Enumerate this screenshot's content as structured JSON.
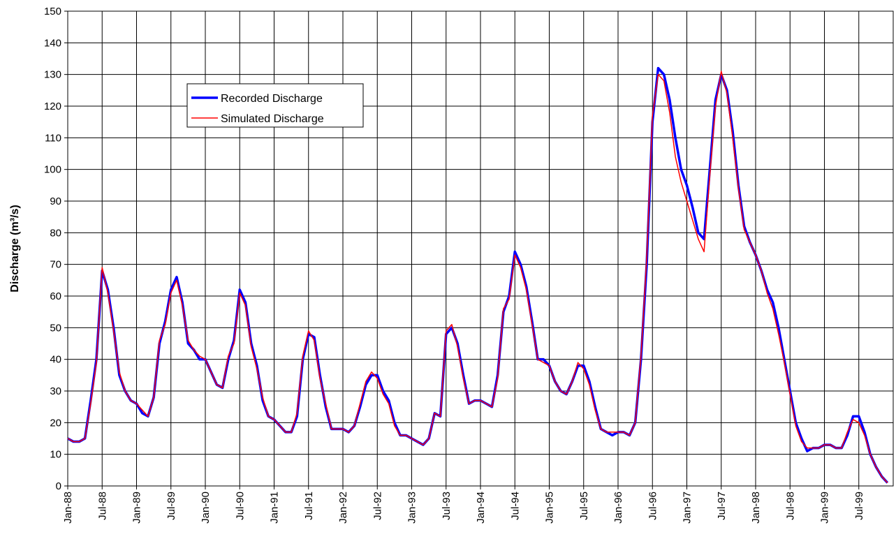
{
  "chart_data": {
    "type": "line",
    "y_label": "Discharge (m³/s)",
    "x": [
      0,
      1,
      2,
      3,
      4,
      5,
      6,
      7,
      8,
      9,
      10,
      11,
      12,
      13,
      14,
      15,
      16,
      17,
      18,
      19,
      20,
      21,
      22,
      23,
      24,
      25,
      26,
      27,
      28,
      29,
      30,
      31,
      32,
      33,
      34,
      35,
      36,
      37,
      38,
      39,
      40,
      41,
      42,
      43,
      44,
      45,
      46,
      47,
      48,
      49,
      50,
      51,
      52,
      53,
      54,
      55,
      56,
      57,
      58,
      59,
      60,
      61,
      62,
      63,
      64,
      65,
      66,
      67,
      68,
      69,
      70,
      71,
      72,
      73,
      74,
      75,
      76,
      77,
      78,
      79,
      80,
      81,
      82,
      83,
      84,
      85,
      86,
      87,
      88,
      89,
      90,
      91,
      92,
      93,
      94,
      95,
      96,
      97,
      98,
      99,
      100,
      101,
      102,
      103,
      104,
      105,
      106,
      107,
      108,
      109,
      110,
      111,
      112,
      113,
      114,
      115,
      116,
      117,
      118,
      119,
      120,
      121,
      122,
      123,
      124,
      125,
      126,
      127,
      128,
      129,
      130,
      131,
      132,
      133,
      134,
      135,
      136,
      137,
      138,
      139,
      140,
      141,
      142,
      143
    ],
    "series": [
      {
        "name": "Recorded Discharge",
        "color": "#0000ff",
        "width": 3.5,
        "values": [
          15,
          14,
          14,
          15,
          27,
          40,
          68,
          62,
          50,
          35,
          30,
          27,
          26,
          23,
          22,
          28,
          45,
          52,
          62,
          66,
          58,
          45,
          43,
          40,
          40,
          36,
          32,
          31,
          40,
          46,
          62,
          58,
          45,
          38,
          27,
          22,
          21,
          19,
          17,
          17,
          22,
          40,
          48,
          47,
          35,
          25,
          18,
          18,
          18,
          17,
          19,
          25,
          32,
          35,
          35,
          30,
          27,
          20,
          16,
          16,
          15,
          14,
          13,
          15,
          23,
          22,
          48,
          50,
          45,
          35,
          26,
          27,
          27,
          26,
          25,
          35,
          55,
          60,
          74,
          70,
          63,
          52,
          40,
          40,
          38,
          33,
          30,
          29,
          33,
          38,
          38,
          33,
          25,
          18,
          17,
          16,
          17,
          17,
          16,
          20,
          40,
          70,
          115,
          132,
          130,
          122,
          110,
          100,
          95,
          88,
          80,
          78,
          100,
          122,
          130,
          125,
          112,
          95,
          82,
          77,
          73,
          68,
          62,
          58,
          50,
          40,
          30,
          20,
          15,
          11,
          12,
          12,
          13,
          13,
          12,
          12,
          16,
          22,
          22,
          17,
          10,
          6,
          3,
          1
        ]
      },
      {
        "name": "Simulated Discharge",
        "color": "#ff0000",
        "width": 1.5,
        "values": [
          15,
          14,
          14,
          15,
          26,
          39,
          69,
          61,
          49,
          36,
          30,
          27,
          26,
          24,
          22,
          28,
          46,
          51,
          61,
          65,
          57,
          46,
          43,
          41,
          40,
          36,
          32,
          31,
          41,
          45,
          61,
          57,
          44,
          37,
          28,
          22,
          21,
          19,
          17,
          17,
          23,
          41,
          49,
          46,
          34,
          26,
          18,
          18,
          18,
          17,
          19,
          26,
          33,
          36,
          34,
          29,
          26,
          19,
          16,
          16,
          15,
          14,
          13,
          15,
          23,
          22,
          49,
          51,
          44,
          34,
          26,
          27,
          27,
          26,
          25,
          34,
          56,
          59,
          73,
          69,
          62,
          51,
          40,
          39,
          38,
          33,
          30,
          29,
          33,
          39,
          37,
          32,
          24,
          18,
          17,
          17,
          17,
          17,
          16,
          20,
          41,
          72,
          117,
          130,
          128,
          118,
          104,
          96,
          90,
          84,
          78,
          74,
          98,
          120,
          131,
          124,
          110,
          94,
          81,
          77,
          73,
          68,
          61,
          56,
          48,
          39,
          29,
          19,
          14,
          12,
          12,
          12,
          13,
          13,
          12,
          12,
          17,
          21,
          20,
          16,
          10,
          6,
          3,
          1
        ]
      }
    ],
    "xlim": [
      0,
      144
    ],
    "xticks": [
      {
        "value": 0,
        "label": "Jan-88"
      },
      {
        "value": 6,
        "label": "Jul-88"
      },
      {
        "value": 12,
        "label": "Jan-89"
      },
      {
        "value": 18,
        "label": "Jul-89"
      },
      {
        "value": 24,
        "label": "Jan-90"
      },
      {
        "value": 30,
        "label": "Jul-90"
      },
      {
        "value": 36,
        "label": "Jan-91"
      },
      {
        "value": 42,
        "label": "Jul-91"
      },
      {
        "value": 48,
        "label": "Jan-92"
      },
      {
        "value": 54,
        "label": "Jul-92"
      },
      {
        "value": 60,
        "label": "Jan-93"
      },
      {
        "value": 66,
        "label": "Jul-93"
      },
      {
        "value": 72,
        "label": "Jan-94"
      },
      {
        "value": 78,
        "label": "Jul-94"
      },
      {
        "value": 84,
        "label": "Jan-95"
      },
      {
        "value": 90,
        "label": "Jul-95"
      },
      {
        "value": 96,
        "label": "Jan-96"
      },
      {
        "value": 102,
        "label": "Jul-96"
      },
      {
        "value": 108,
        "label": "Jan-97"
      },
      {
        "value": 114,
        "label": "Jul-97"
      },
      {
        "value": 120,
        "label": "Jan-98"
      },
      {
        "value": 126,
        "label": "Jul-98"
      },
      {
        "value": 132,
        "label": "Jan-99"
      },
      {
        "value": 138,
        "label": "Jul-99"
      }
    ],
    "ylim": [
      0,
      150
    ],
    "yticks": [
      0,
      10,
      20,
      30,
      40,
      50,
      60,
      70,
      80,
      90,
      100,
      110,
      120,
      130,
      140,
      150
    ],
    "grid": true
  }
}
